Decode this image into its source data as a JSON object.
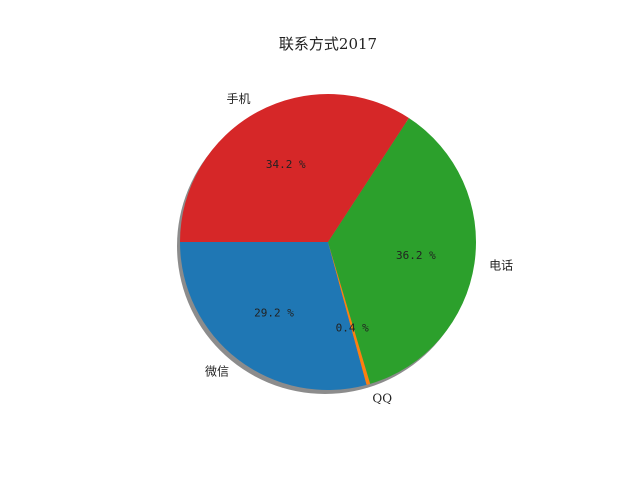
{
  "chart_data": {
    "type": "pie",
    "title": "联系方式2017",
    "slices": [
      {
        "label": "微信",
        "value": 29.2,
        "pct_label": "29.2 %",
        "color": "#1f77b4"
      },
      {
        "label": "QQ",
        "value": 0.4,
        "pct_label": "0.4 %",
        "color": "#ff7f0e"
      },
      {
        "label": "电话",
        "value": 36.2,
        "pct_label": "36.2 %",
        "color": "#2ca02c"
      },
      {
        "label": "手机",
        "value": 34.2,
        "pct_label": "34.2 %",
        "color": "#d62728"
      }
    ],
    "start_angle_deg": 180,
    "direction": "counterclockwise",
    "shadow": true,
    "grid": false
  }
}
